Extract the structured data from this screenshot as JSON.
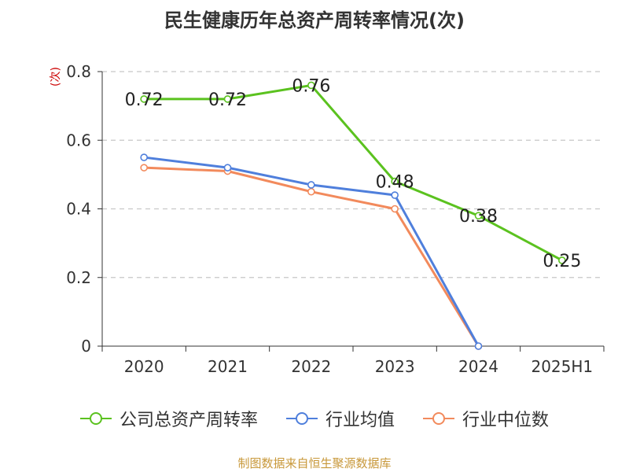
{
  "title": "民生健康历年总资产周转率情况(次)",
  "y_unit": "(次)",
  "source": "制图数据来自恒生聚源数据库",
  "chart_data": {
    "type": "line",
    "categories": [
      "2020",
      "2021",
      "2022",
      "2023",
      "2024",
      "2025H1"
    ],
    "ylim": [
      0,
      0.8
    ],
    "yticks": [
      0,
      0.2,
      0.4,
      0.6,
      0.8
    ],
    "ytick_labels": [
      "0",
      "0.2",
      "0.4",
      "0.6",
      "0.8"
    ],
    "grid": true,
    "legend_position": "bottom",
    "series": [
      {
        "name": "公司总资产周转率",
        "color": "#5bc21f",
        "values": [
          0.72,
          0.72,
          0.76,
          0.48,
          0.38,
          0.25
        ],
        "labels": [
          "0.72",
          "0.72",
          "0.76",
          "0.48",
          "0.38",
          "0.25"
        ]
      },
      {
        "name": "行业均值",
        "color": "#4f7fdc",
        "values": [
          0.55,
          0.52,
          0.47,
          0.44,
          0.0,
          null
        ]
      },
      {
        "name": "行业中位数",
        "color": "#f28a5c",
        "values": [
          0.52,
          0.51,
          0.45,
          0.4,
          0.0,
          null
        ]
      }
    ]
  }
}
